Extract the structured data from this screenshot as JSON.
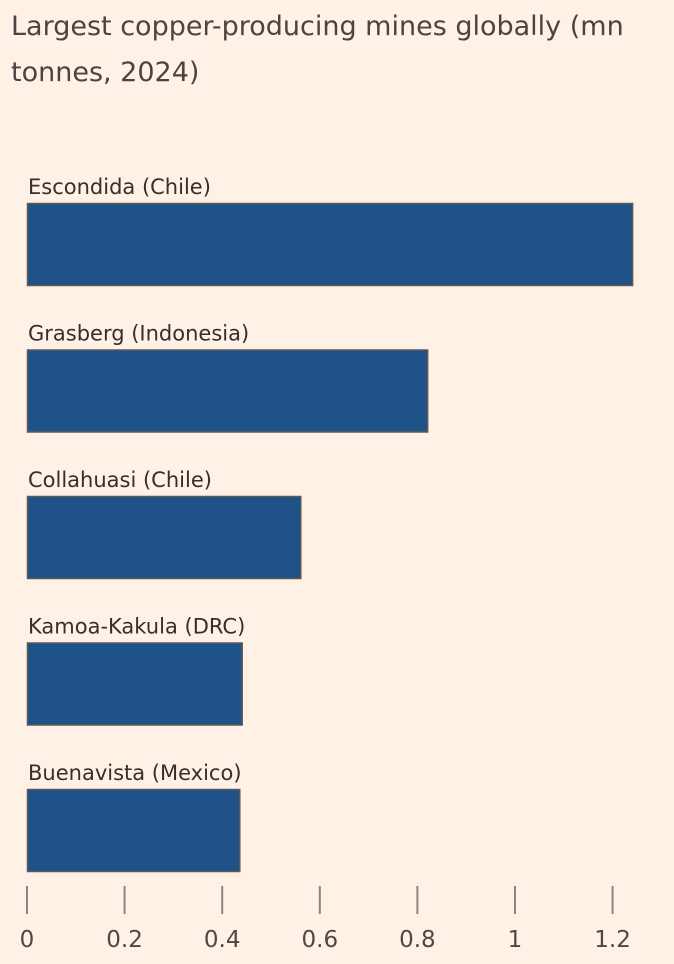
{
  "chart_data": {
    "type": "bar",
    "orientation": "horizontal",
    "title": "Largest copper-producing mines globally (mn tonnes, 2024)",
    "categories": [
      "Escondida (Chile)",
      "Grasberg (Indonesia)",
      "Collahuasi (Chile)",
      "Kamoa-Kakula (DRC)",
      "Buenavista (Mexico)"
    ],
    "values": [
      1.24,
      0.82,
      0.56,
      0.44,
      0.435
    ],
    "xlim": [
      0,
      1.2
    ],
    "xticks": [
      "0",
      "0.2",
      "0.4",
      "0.6",
      "0.8",
      "1",
      "1.2"
    ],
    "xlabel": "",
    "ylabel": "",
    "grid": false,
    "legend": "none",
    "bar_color": "#1f5289",
    "background": "#fff1e5"
  }
}
